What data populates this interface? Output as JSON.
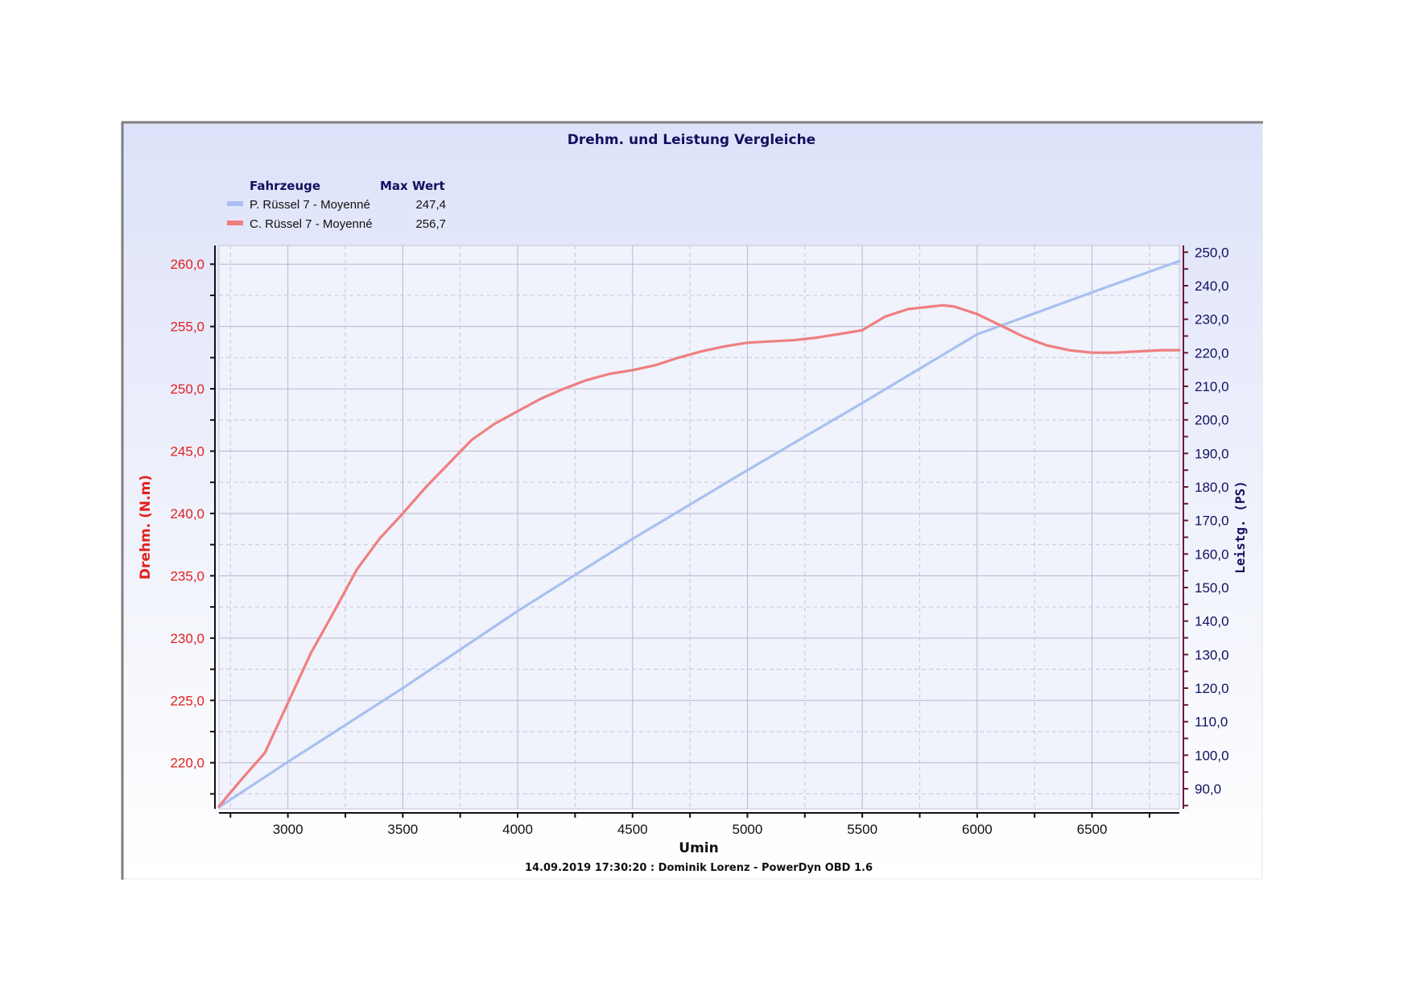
{
  "chart_data": {
    "type": "line",
    "title": "Drehm. und Leistung Vergleiche",
    "xlabel": "Umin",
    "ylabel_left": "Drehm. (N.m)",
    "ylabel_right": "Leistg. (PS)",
    "footer": "14.09.2019 17:30:20 : Dominik Lorenz - PowerDyn OBD 1.6",
    "xlim": [
      2700,
      6880
    ],
    "ylim_left": [
      216.3,
      261.5
    ],
    "ylim_right": [
      84.0,
      252.0
    ],
    "x_ticks": [
      "3000",
      "3500",
      "4000",
      "4500",
      "5000",
      "5500",
      "6000",
      "6500"
    ],
    "y_left_ticks": [
      "220,0",
      "225,0",
      "230,0",
      "235,0",
      "240,0",
      "245,0",
      "250,0",
      "255,0",
      "260,0"
    ],
    "y_right_ticks": [
      "90,0",
      "100,0",
      "110,0",
      "120,0",
      "130,0",
      "140,0",
      "150,0",
      "160,0",
      "170,0",
      "180,0",
      "190,0",
      "200,0",
      "210,0",
      "220,0",
      "230,0",
      "240,0",
      "250,0"
    ],
    "legend": {
      "header_name": "Fahrzeuge",
      "header_value": "Max Wert",
      "placement": "top-left"
    },
    "grid": true,
    "series": [
      {
        "name": "P. Rüssel 7 - Moyenné",
        "max_label": "247,4",
        "axis": "right",
        "color": "#a8c0f0",
        "x": [
          2700,
          3000,
          3500,
          4000,
          4500,
          5000,
          5500,
          6000,
          6500,
          6880
        ],
        "y": [
          84.5,
          98.0,
          120.0,
          143.0,
          164.5,
          185.0,
          205.0,
          225.5,
          238.0,
          247.4
        ]
      },
      {
        "name": "C. Rüssel 7 - Moyenné",
        "max_label": "256,7",
        "axis": "left",
        "color": "#ef7f7f",
        "x": [
          2700,
          2800,
          2900,
          3000,
          3100,
          3200,
          3300,
          3400,
          3500,
          3600,
          3700,
          3800,
          3900,
          4000,
          4100,
          4200,
          4300,
          4400,
          4500,
          4600,
          4700,
          4800,
          4900,
          5000,
          5100,
          5200,
          5300,
          5400,
          5500,
          5600,
          5700,
          5800,
          5850,
          5900,
          6000,
          6100,
          6200,
          6300,
          6400,
          6500,
          6600,
          6700,
          6800,
          6880
        ],
        "y": [
          216.5,
          218.7,
          220.8,
          224.8,
          228.8,
          232.1,
          235.5,
          238.0,
          240.0,
          242.1,
          244.0,
          245.9,
          247.2,
          248.2,
          249.2,
          250.0,
          250.7,
          251.2,
          251.5,
          251.9,
          252.5,
          253.0,
          253.4,
          253.7,
          253.8,
          253.9,
          254.1,
          254.4,
          254.7,
          255.8,
          256.4,
          256.6,
          256.7,
          256.6,
          256.0,
          255.1,
          254.2,
          253.5,
          253.1,
          252.9,
          252.9,
          253.0,
          253.1,
          253.1
        ]
      }
    ]
  }
}
